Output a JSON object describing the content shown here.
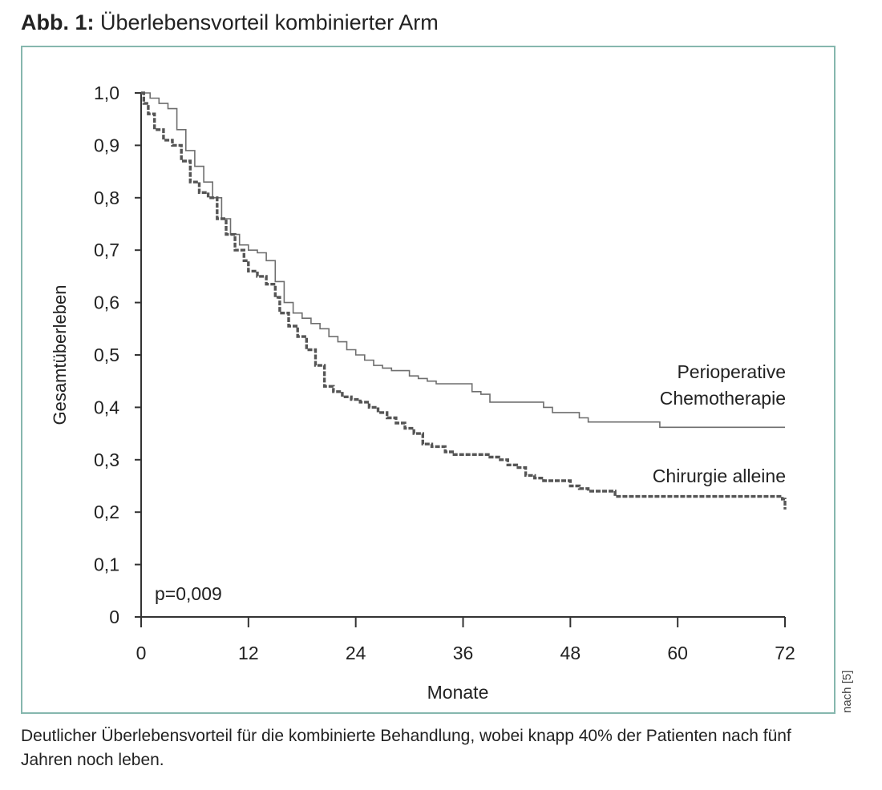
{
  "figure": {
    "label": "Abb. 1:",
    "title": "Überlebensvorteil kombinierter Arm",
    "caption": "Deutlicher Überlebensvorteil für die kombinierte Behandlung, wobei knapp 40% der Patienten nach fünf Jahren noch leben.",
    "source_note": "nach [5]"
  },
  "chart_data": {
    "type": "line",
    "title": "Überlebensvorteil kombinierter Arm",
    "xlabel": "Monate",
    "ylabel": "Gesamtüberleben",
    "xlim": [
      0,
      72
    ],
    "ylim": [
      0,
      1
    ],
    "x_ticks": [
      0,
      12,
      24,
      36,
      48,
      60,
      72
    ],
    "x_tick_labels": [
      "0",
      "12",
      "24",
      "36",
      "48",
      "60",
      "72"
    ],
    "y_ticks": [
      0,
      0.1,
      0.2,
      0.3,
      0.4,
      0.5,
      0.6,
      0.7,
      0.8,
      0.9,
      1.0
    ],
    "y_tick_labels": [
      "0",
      "0,1",
      "0,2",
      "0,3",
      "0,4",
      "0,5",
      "0,6",
      "0,7",
      "0,8",
      "0,9",
      "1,0"
    ],
    "grid": false,
    "legend": "inline labels at right end of curves",
    "annotation": "p=0,009",
    "series": [
      {
        "name": "Perioperative Chemotherapie",
        "label_lines": [
          "Perioperative",
          "Chemotherapie"
        ],
        "style": "solid-thin",
        "color": "#6e6e6e",
        "points": [
          [
            0,
            1.0
          ],
          [
            0.5,
            1.0
          ],
          [
            1,
            0.99
          ],
          [
            2,
            0.98
          ],
          [
            3,
            0.97
          ],
          [
            4,
            0.93
          ],
          [
            5,
            0.89
          ],
          [
            6,
            0.86
          ],
          [
            7,
            0.83
          ],
          [
            8,
            0.8
          ],
          [
            9,
            0.76
          ],
          [
            10,
            0.73
          ],
          [
            11,
            0.71
          ],
          [
            12,
            0.7
          ],
          [
            13,
            0.695
          ],
          [
            14,
            0.68
          ],
          [
            15,
            0.64
          ],
          [
            16,
            0.6
          ],
          [
            17,
            0.58
          ],
          [
            18,
            0.57
          ],
          [
            19,
            0.56
          ],
          [
            20,
            0.55
          ],
          [
            21,
            0.535
          ],
          [
            22,
            0.525
          ],
          [
            23,
            0.51
          ],
          [
            24,
            0.5
          ],
          [
            25,
            0.49
          ],
          [
            26,
            0.48
          ],
          [
            27,
            0.475
          ],
          [
            28,
            0.47
          ],
          [
            29,
            0.47
          ],
          [
            30,
            0.46
          ],
          [
            31,
            0.455
          ],
          [
            32,
            0.45
          ],
          [
            33,
            0.445
          ],
          [
            34,
            0.445
          ],
          [
            35,
            0.445
          ],
          [
            36,
            0.445
          ],
          [
            37,
            0.43
          ],
          [
            38,
            0.425
          ],
          [
            39,
            0.41
          ],
          [
            40,
            0.41
          ],
          [
            42,
            0.41
          ],
          [
            44,
            0.41
          ],
          [
            45,
            0.4
          ],
          [
            46,
            0.39
          ],
          [
            48,
            0.39
          ],
          [
            49,
            0.38
          ],
          [
            50,
            0.372
          ],
          [
            52,
            0.372
          ],
          [
            54,
            0.372
          ],
          [
            56,
            0.372
          ],
          [
            57.5,
            0.372
          ],
          [
            58,
            0.362
          ],
          [
            60,
            0.362
          ],
          [
            64,
            0.362
          ],
          [
            68,
            0.362
          ],
          [
            72,
            0.362
          ]
        ]
      },
      {
        "name": "Chirurgie alleine",
        "label_lines": [
          "Chirurgie alleine"
        ],
        "style": "thick-dashed",
        "color": "#555555",
        "points": [
          [
            0,
            1.0
          ],
          [
            0.3,
            0.98
          ],
          [
            0.8,
            0.96
          ],
          [
            1.5,
            0.93
          ],
          [
            2.5,
            0.91
          ],
          [
            3.5,
            0.9
          ],
          [
            4.5,
            0.87
          ],
          [
            5.5,
            0.83
          ],
          [
            6.5,
            0.81
          ],
          [
            7.5,
            0.8
          ],
          [
            8.5,
            0.76
          ],
          [
            9.5,
            0.73
          ],
          [
            10.5,
            0.7
          ],
          [
            11.5,
            0.68
          ],
          [
            12,
            0.66
          ],
          [
            13,
            0.65
          ],
          [
            14,
            0.635
          ],
          [
            15,
            0.61
          ],
          [
            15.5,
            0.58
          ],
          [
            16.5,
            0.555
          ],
          [
            17.5,
            0.535
          ],
          [
            18.5,
            0.51
          ],
          [
            19.5,
            0.48
          ],
          [
            20.5,
            0.44
          ],
          [
            21.5,
            0.43
          ],
          [
            22.5,
            0.42
          ],
          [
            23.5,
            0.415
          ],
          [
            24.5,
            0.41
          ],
          [
            25.5,
            0.4
          ],
          [
            26.5,
            0.39
          ],
          [
            27.5,
            0.38
          ],
          [
            28.5,
            0.37
          ],
          [
            29.5,
            0.36
          ],
          [
            30.5,
            0.35
          ],
          [
            31.5,
            0.33
          ],
          [
            32.5,
            0.325
          ],
          [
            34,
            0.315
          ],
          [
            35,
            0.31
          ],
          [
            36,
            0.31
          ],
          [
            38,
            0.31
          ],
          [
            39,
            0.305
          ],
          [
            40,
            0.3
          ],
          [
            41,
            0.29
          ],
          [
            42,
            0.285
          ],
          [
            43,
            0.27
          ],
          [
            44,
            0.265
          ],
          [
            45,
            0.26
          ],
          [
            47,
            0.26
          ],
          [
            48,
            0.25
          ],
          [
            49,
            0.245
          ],
          [
            50,
            0.24
          ],
          [
            52,
            0.24
          ],
          [
            53,
            0.23
          ],
          [
            54,
            0.23
          ],
          [
            58,
            0.23
          ],
          [
            62,
            0.23
          ],
          [
            66,
            0.23
          ],
          [
            70,
            0.23
          ],
          [
            71.7,
            0.225
          ],
          [
            72,
            0.205
          ]
        ]
      }
    ]
  }
}
